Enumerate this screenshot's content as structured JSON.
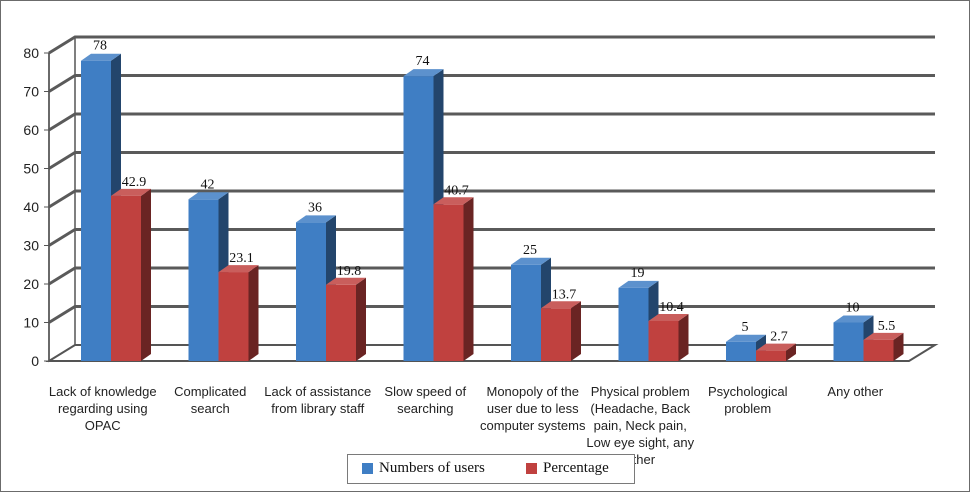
{
  "chart_data": {
    "type": "bar",
    "title": "",
    "xlabel": "",
    "ylabel": "",
    "ylim": [
      0,
      80
    ],
    "yticks": [
      0,
      10,
      20,
      30,
      40,
      50,
      60,
      70,
      80
    ],
    "grid": true,
    "legend_position": "bottom",
    "categories": [
      "Lack of knowledge regarding using OPAC",
      "Complicated search",
      "Lack of assistance from library staff",
      "Slow speed of searching",
      "Monopoly of the user due to less computer systems",
      "Physical problem (Headache, Back pain, Neck pain, Low eye sight, any other",
      "Psychological problem",
      "Any other"
    ],
    "series": [
      {
        "name": "Numbers of users",
        "color": "#3f7ec4",
        "values": [
          78,
          42,
          36,
          74,
          25,
          19,
          5,
          10
        ]
      },
      {
        "name": "Percentage",
        "color": "#c0413f",
        "values": [
          42.9,
          23.1,
          19.8,
          40.7,
          13.7,
          10.4,
          2.7,
          5.5
        ]
      }
    ]
  }
}
